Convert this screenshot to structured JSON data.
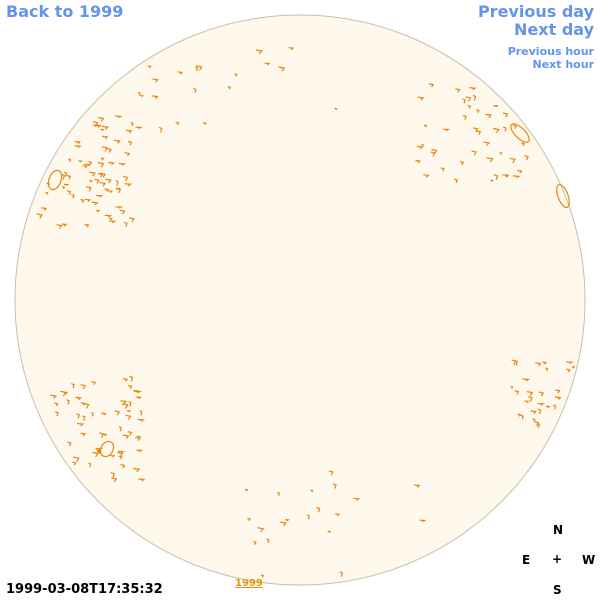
{
  "nav": {
    "back": "Back to 1999",
    "prev_day": "Previous day",
    "next_day": "Next day",
    "prev_hour": "Previous hour",
    "next_hour": "Next hour"
  },
  "timestamp": "1999-03-08T17:35:32",
  "year_mark": "1999",
  "compass": {
    "n": "N",
    "e": "E",
    "plus": "+",
    "w": "W",
    "s": "S"
  },
  "colors": {
    "disk_fill": "#FFF8EC",
    "disk_edge": "#C8BEAA",
    "contour": "#E8860C",
    "link": "#6495ED"
  }
}
